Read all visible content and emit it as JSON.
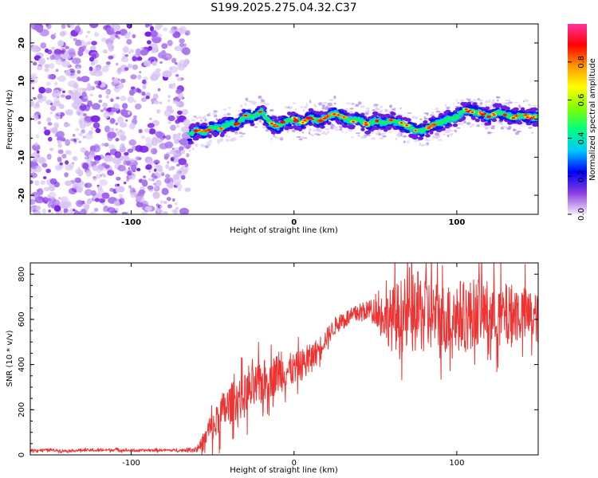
{
  "title": "S199.2025.275.04.32.C37",
  "chart_data": [
    {
      "type": "heatmap",
      "name": "spectrogram",
      "xlabel": "Height of straight line (km)",
      "ylabel": "Frequency (Hz)",
      "xlim": [
        -162,
        150
      ],
      "ylim": [
        -25,
        25
      ],
      "x_ticks": [
        -100,
        0,
        100
      ],
      "y_ticks": [
        -20,
        -10,
        0,
        10,
        20
      ],
      "noise_region_x": [
        -162,
        -65
      ],
      "ridge": {
        "x": [
          -65,
          -60,
          -55,
          -50,
          -45,
          -40,
          -35,
          -30,
          -25,
          -20,
          -15,
          -10,
          -5,
          0,
          5,
          10,
          15,
          20,
          25,
          30,
          35,
          40,
          45,
          50,
          55,
          60,
          65,
          70,
          75,
          80,
          85,
          90,
          95,
          100,
          105,
          110,
          115,
          120,
          125,
          130,
          135,
          140,
          145,
          150
        ],
        "y": [
          -4.5,
          -3,
          -3.5,
          -2,
          -2.5,
          -1,
          -1.5,
          1,
          0.5,
          2,
          -1,
          -2,
          -0.5,
          0,
          -1,
          0.5,
          -0.5,
          0.5,
          1.5,
          0.5,
          -0.5,
          0,
          -1.5,
          -0.5,
          -1,
          -0.5,
          -1,
          -2,
          -3,
          -3,
          -1.5,
          -1,
          0,
          0.5,
          2.5,
          2,
          1.5,
          0.5,
          2,
          1,
          0.5,
          1,
          0.5,
          0.5
        ]
      },
      "colorbar": {
        "label": "Normalized spectral amplitude",
        "range": [
          0,
          1
        ],
        "ticks": [
          "0.0",
          "0.2",
          "0.4",
          "0.6",
          "0.8"
        ],
        "tick_values": [
          0,
          0.2,
          0.4,
          0.6,
          0.8
        ],
        "stops": [
          "#f2ecf8",
          "#8a3fe0",
          "#0000ff",
          "#00c8ff",
          "#00ff80",
          "#80ff00",
          "#ffff00",
          "#ff9900",
          "#ff0000",
          "#ff33a0"
        ]
      }
    },
    {
      "type": "line",
      "name": "snr",
      "xlabel": "Height of straight line (km)",
      "ylabel": "SNR (10 * v/v)",
      "xlim": [
        -162,
        150
      ],
      "ylim": [
        0,
        850
      ],
      "x_ticks": [
        -100,
        0,
        100
      ],
      "y_ticks": [
        0,
        200,
        400,
        600,
        800
      ],
      "color": "#ee3333",
      "series": [
        {
          "name": "SNR",
          "x": [
            -162,
            -150,
            -140,
            -130,
            -120,
            -110,
            -100,
            -90,
            -80,
            -70,
            -60,
            -55,
            -52,
            -50,
            -45,
            -40,
            -35,
            -30,
            -25,
            -20,
            -15,
            -10,
            -5,
            0,
            5,
            10,
            15,
            20,
            25,
            30,
            35,
            40,
            45,
            50,
            55,
            60,
            65,
            70,
            75,
            80,
            85,
            90,
            95,
            100,
            105,
            110,
            115,
            120,
            125,
            130,
            135,
            140,
            145,
            150
          ],
          "y": [
            20,
            22,
            18,
            21,
            20,
            23,
            19,
            20,
            21,
            20,
            25,
            60,
            120,
            110,
            180,
            220,
            250,
            260,
            290,
            320,
            340,
            360,
            370,
            380,
            400,
            430,
            470,
            520,
            570,
            600,
            610,
            630,
            640,
            640,
            620,
            600,
            620,
            610,
            630,
            640,
            620,
            610,
            600,
            620,
            610,
            630,
            640,
            620,
            610,
            620,
            630,
            620,
            615,
            600
          ],
          "noise_amplitude": [
            6,
            6,
            6,
            6,
            6,
            6,
            6,
            6,
            6,
            6,
            12,
            40,
            60,
            70,
            90,
            90,
            90,
            100,
            100,
            100,
            90,
            90,
            80,
            70,
            70,
            60,
            50,
            40,
            40,
            40,
            40,
            40,
            40,
            60,
            100,
            140,
            160,
            170,
            180,
            180,
            160,
            150,
            160,
            170,
            160,
            150,
            150,
            150,
            140,
            140,
            130,
            130,
            120,
            110
          ]
        }
      ]
    }
  ]
}
